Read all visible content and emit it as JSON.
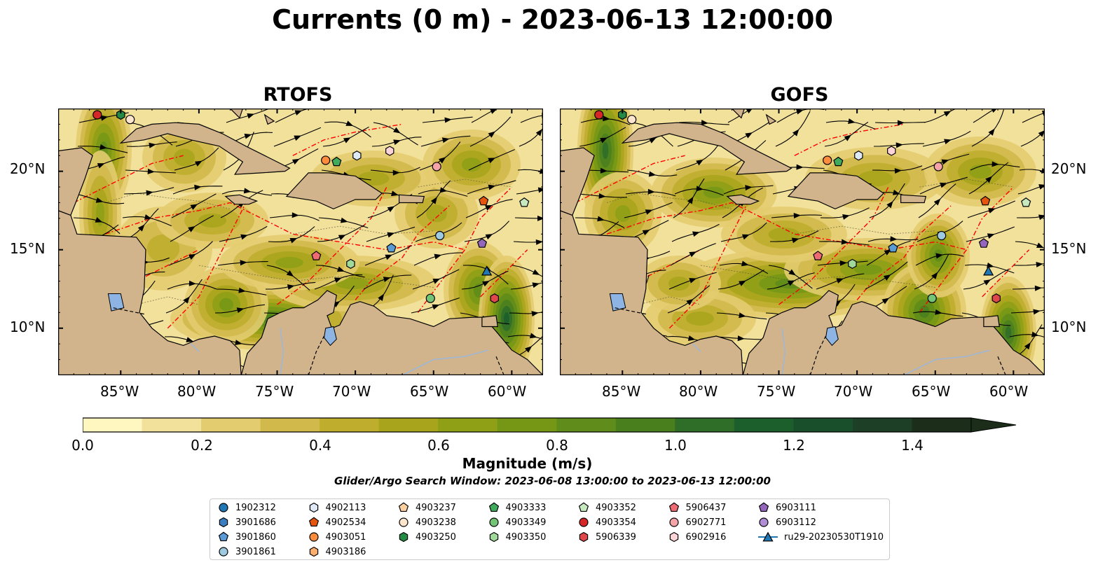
{
  "title": "Currents (0 m) - 2023-06-13 12:00:00",
  "panels": [
    {
      "id": "rtofs",
      "title": "RTOFS"
    },
    {
      "id": "gofs",
      "title": "GOFS"
    }
  ],
  "axes": {
    "lat_ticks": [
      "20°N",
      "15°N",
      "10°N"
    ],
    "lon_ticks": [
      "85°W",
      "80°W",
      "75°W",
      "70°W",
      "65°W",
      "60°W"
    ],
    "lon_range": [
      -89,
      -58
    ],
    "lat_range": [
      7,
      24
    ]
  },
  "colorbar": {
    "label": "Magnitude (m/s)",
    "ticks": [
      "0.0",
      "0.2",
      "0.4",
      "0.6",
      "0.8",
      "1.0",
      "1.2",
      "1.4"
    ],
    "min": 0.0,
    "max": 1.5,
    "step": 0.1,
    "extend": "max",
    "colors": [
      "#fff6c0",
      "#f2e19b",
      "#e3cc6f",
      "#d2b94c",
      "#bfae2e",
      "#a8a51d",
      "#8fa017",
      "#769716",
      "#5f8c1a",
      "#4a7f1e",
      "#2f6e28",
      "#1c5e2c",
      "#1a4f2c",
      "#1c3f25",
      "#1c2e1a"
    ]
  },
  "search_window_note": "Glider/Argo Search Window: 2023-06-08 13:00:00 to 2023-06-13 12:00:00",
  "colors": {
    "land": "#d2b48c",
    "lakes": "#8db4e2",
    "eez_lines": "#ff0000",
    "streamlines": "#000000"
  },
  "legend": [
    {
      "label": "1902312",
      "marker": "circle",
      "color": "#1f77b4"
    },
    {
      "label": "3901686",
      "marker": "hexagon",
      "color": "#3a7ebf"
    },
    {
      "label": "3901860",
      "marker": "pentagon",
      "color": "#5b9bd5"
    },
    {
      "label": "3901861",
      "marker": "circle",
      "color": "#9ecae1"
    },
    {
      "label": "4902113",
      "marker": "hexagon",
      "color": "#deebf7"
    },
    {
      "label": "4902534",
      "marker": "pentagon",
      "color": "#e6550d"
    },
    {
      "label": "4903051",
      "marker": "circle",
      "color": "#fd8d3c"
    },
    {
      "label": "4903186",
      "marker": "hexagon",
      "color": "#fdae6b"
    },
    {
      "label": "4903237",
      "marker": "pentagon",
      "color": "#fdd0a2"
    },
    {
      "label": "4903238",
      "marker": "circle",
      "color": "#fee6ce"
    },
    {
      "label": "4903250",
      "marker": "hexagon",
      "color": "#238b45"
    },
    {
      "label": "4903333",
      "marker": "pentagon",
      "color": "#41ab5d"
    },
    {
      "label": "4903349",
      "marker": "circle",
      "color": "#74c476"
    },
    {
      "label": "4903350",
      "marker": "hexagon",
      "color": "#a1d99b"
    },
    {
      "label": "4903352",
      "marker": "pentagon",
      "color": "#c7e9c0"
    },
    {
      "label": "4903354",
      "marker": "circle",
      "color": "#d62728"
    },
    {
      "label": "5906339",
      "marker": "hexagon",
      "color": "#e0474b"
    },
    {
      "label": "5906437",
      "marker": "pentagon",
      "color": "#ef6b74"
    },
    {
      "label": "6902771",
      "marker": "circle",
      "color": "#f4a4a8"
    },
    {
      "label": "6902916",
      "marker": "hexagon",
      "color": "#fcd3d6"
    },
    {
      "label": "6903111",
      "marker": "pentagon",
      "color": "#9467bd"
    },
    {
      "label": "6903112",
      "marker": "circle",
      "color": "#b08ed6"
    },
    {
      "label": "ru29-20230530T1910",
      "marker": "triangle-line",
      "color": "#1f77b4"
    }
  ],
  "floats": [
    {
      "label": "4903354",
      "lon": -86.5,
      "lat": 23.6
    },
    {
      "label": "4903250",
      "lon": -85.0,
      "lat": 23.6
    },
    {
      "label": "4903238",
      "lon": -84.4,
      "lat": 23.3
    },
    {
      "label": "4903051",
      "lon": -71.9,
      "lat": 20.7
    },
    {
      "label": "4903333",
      "lon": -71.2,
      "lat": 20.6
    },
    {
      "label": "4902113",
      "lon": -69.9,
      "lat": 21.0
    },
    {
      "label": "6902916",
      "lon": -67.8,
      "lat": 21.3
    },
    {
      "label": "6902771",
      "lon": -64.8,
      "lat": 20.3
    },
    {
      "label": "4902534",
      "lon": -61.8,
      "lat": 18.1
    },
    {
      "label": "4903352",
      "lon": -59.2,
      "lat": 18.0
    },
    {
      "label": "3901861",
      "lon": -64.6,
      "lat": 15.9
    },
    {
      "label": "6903111",
      "lon": -61.9,
      "lat": 15.4
    },
    {
      "label": "3901860",
      "lon": -67.7,
      "lat": 15.1
    },
    {
      "label": "5906437",
      "lon": -72.5,
      "lat": 14.6
    },
    {
      "label": "4903349",
      "lon": -65.2,
      "lat": 11.9
    },
    {
      "label": "4903350",
      "lon": -70.3,
      "lat": 14.1
    },
    {
      "label": "ru29-20230530T1910",
      "lon": -61.6,
      "lat": 13.6
    },
    {
      "label": "5906339",
      "lon": -61.1,
      "lat": 11.9
    }
  ]
}
